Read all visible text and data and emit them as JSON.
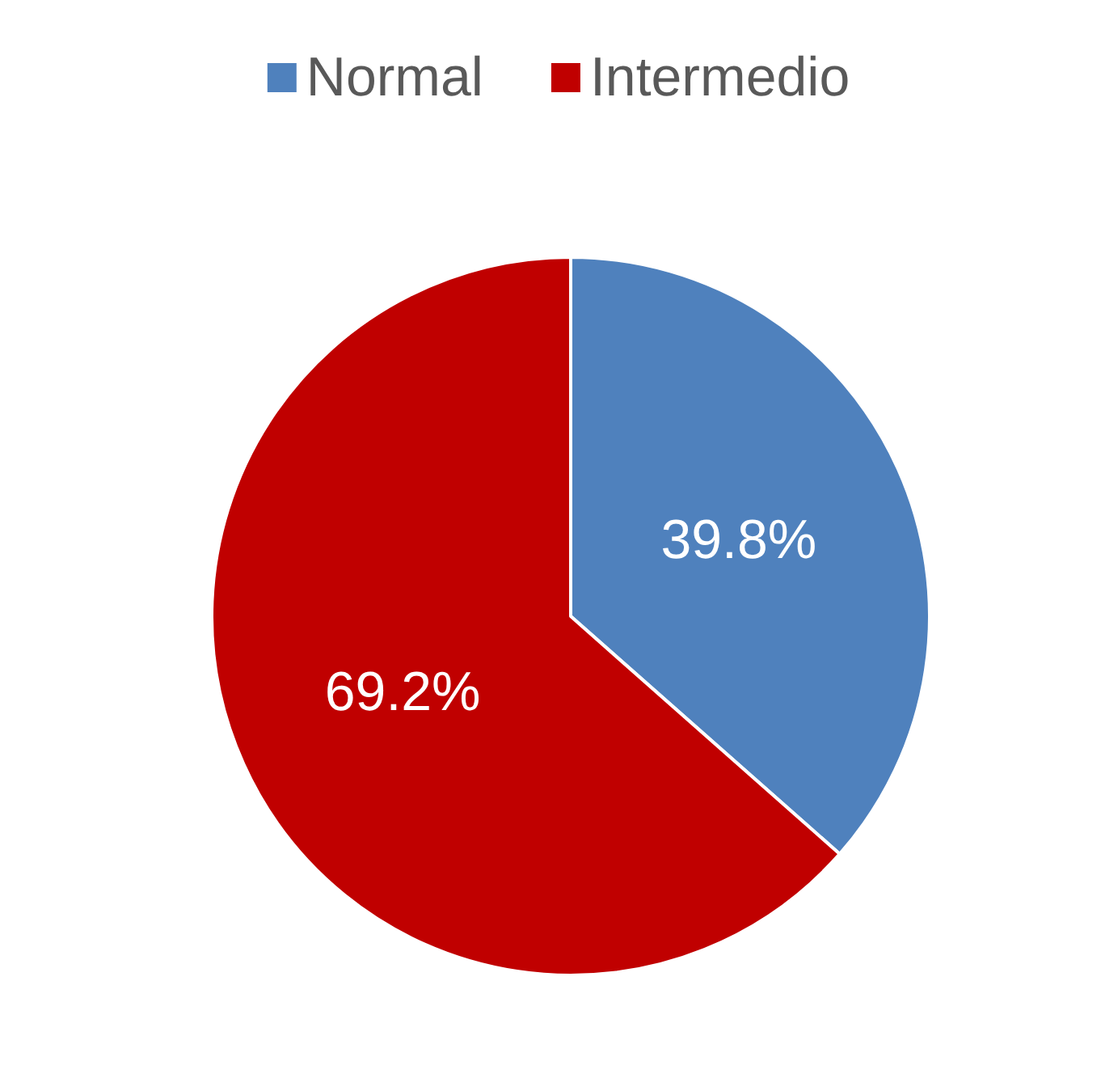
{
  "chart_data": {
    "type": "pie",
    "categories": [
      "Normal",
      "Intermedio"
    ],
    "values": [
      39.8,
      69.2
    ],
    "colors": [
      "#4f81bd",
      "#c00000"
    ],
    "value_labels": [
      "39.8%",
      "69.2%"
    ],
    "legend": "top"
  }
}
